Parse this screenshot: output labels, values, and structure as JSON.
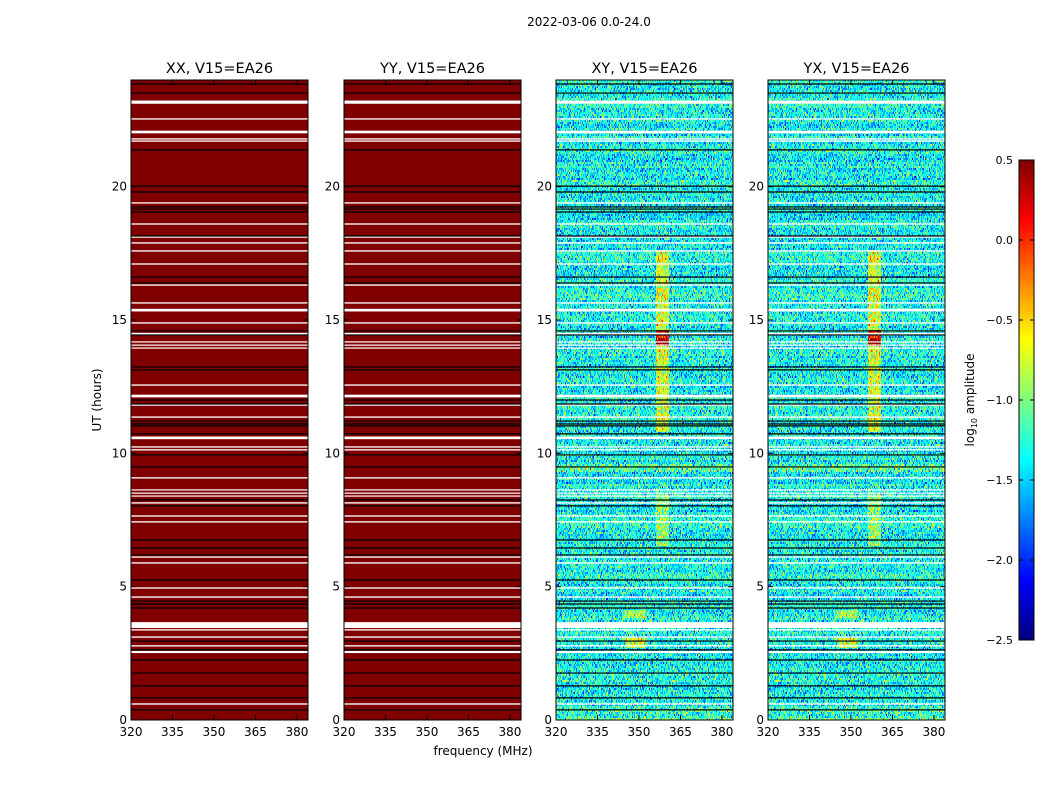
{
  "chart_data": {
    "type": "heatmap",
    "suptitle": "2022-03-06 0.0-24.0",
    "xlabel": "frequency (MHz)",
    "ylabel": "UT (hours)",
    "xlim": [
      320,
      384
    ],
    "ylim": [
      0,
      24
    ],
    "xticks": [
      320,
      335,
      350,
      365,
      380
    ],
    "yticks": [
      0,
      5,
      10,
      15,
      20
    ],
    "panels": [
      {
        "title": "XX, V15=EA26",
        "background_log10_amplitude": 0.5,
        "noise": 0.0
      },
      {
        "title": "YY, V15=EA26",
        "background_log10_amplitude": 0.5,
        "noise": 0.0
      },
      {
        "title": "XY, V15=EA26",
        "background_log10_amplitude": -1.35,
        "noise": 0.28
      },
      {
        "title": "YX, V15=EA26",
        "background_log10_amplitude": -1.35,
        "noise": 0.28
      }
    ],
    "features": [
      {
        "freq": [
          356,
          361
        ],
        "hours": [
          10.8,
          17.6
        ],
        "delta": 0.6
      },
      {
        "freq": [
          356,
          361
        ],
        "hours": [
          14.0,
          14.6
        ],
        "delta": 1.0
      },
      {
        "freq": [
          356,
          361
        ],
        "hours": [
          6.5,
          8.5
        ],
        "delta": 0.4
      },
      {
        "freq": [
          320,
          384
        ],
        "hours": [
          9.3,
          9.6
        ],
        "delta": 0.55
      },
      {
        "freq": [
          345,
          352
        ],
        "hours": [
          2.7,
          3.1
        ],
        "delta": 0.6
      },
      {
        "freq": [
          345,
          352
        ],
        "hours": [
          3.8,
          4.1
        ],
        "delta": 0.5
      },
      {
        "freq": [
          320,
          384
        ],
        "hours": [
          0.0,
          0.4
        ],
        "delta": 0.3
      }
    ],
    "flagged_hours": [
      [
        23.17,
        0.12
      ],
      [
        22.54,
        0.05
      ],
      [
        22.05,
        0.1
      ],
      [
        21.79,
        0.05
      ],
      [
        21.71,
        0.05
      ],
      [
        19.39,
        0.05
      ],
      [
        18.6,
        0.05
      ],
      [
        18.11,
        0.05
      ],
      [
        17.89,
        0.05
      ],
      [
        17.59,
        0.05
      ],
      [
        17.1,
        0.05
      ],
      [
        16.31,
        0.05
      ],
      [
        15.64,
        0.05
      ],
      [
        15.37,
        0.1
      ],
      [
        14.89,
        0.05
      ],
      [
        14.48,
        0.08
      ],
      [
        14.18,
        0.04
      ],
      [
        14.06,
        0.04
      ],
      [
        13.95,
        0.04
      ],
      [
        12.56,
        0.05
      ],
      [
        12.15,
        0.1
      ],
      [
        11.81,
        0.05
      ],
      [
        11.36,
        0.05
      ],
      [
        10.58,
        0.1
      ],
      [
        10.24,
        0.05
      ],
      [
        10.13,
        0.05
      ],
      [
        9.08,
        0.05
      ],
      [
        8.63,
        0.04
      ],
      [
        8.51,
        0.04
      ],
      [
        8.4,
        0.04
      ],
      [
        8.14,
        0.05
      ],
      [
        7.65,
        0.05
      ],
      [
        7.43,
        0.05
      ],
      [
        6.11,
        0.05
      ],
      [
        5.89,
        0.05
      ],
      [
        4.95,
        0.05
      ],
      [
        4.61,
        0.05
      ],
      [
        3.56,
        0.22
      ],
      [
        3.38,
        0.05
      ],
      [
        3.11,
        0.05
      ],
      [
        2.78,
        0.05
      ],
      [
        2.55,
        0.08
      ],
      [
        0.6,
        0.05
      ]
    ],
    "scan_boundaries_hours": [
      23.85,
      23.51,
      21.38,
      20.02,
      19.8,
      19.24,
      19.16,
      19.05,
      18.15,
      16.61,
      16.39,
      14.59,
      14.44,
      13.24,
      13.13,
      12.0,
      11.85,
      11.21,
      11.1,
      11.03,
      10.73,
      9.94,
      9.49,
      8.25,
      8.03,
      6.75,
      6.45,
      6.19,
      5.25,
      4.46,
      4.35,
      4.2,
      2.96,
      2.63,
      2.25,
      1.76,
      1.28,
      0.83,
      0.38
    ],
    "colorbar": {
      "label": "log10 amplitude",
      "label_main": "log",
      "label_sub": "10",
      "label_rest": " amplitude",
      "range": [
        -2.5,
        0.5
      ],
      "ticks": [
        "0.5",
        "0.0",
        "−0.5",
        "−1.0",
        "−1.5",
        "−2.0",
        "−2.5"
      ],
      "tick_values": [
        0.5,
        0.0,
        -0.5,
        -1.0,
        -1.5,
        -2.0,
        -2.5
      ],
      "colormap": "jet"
    }
  }
}
